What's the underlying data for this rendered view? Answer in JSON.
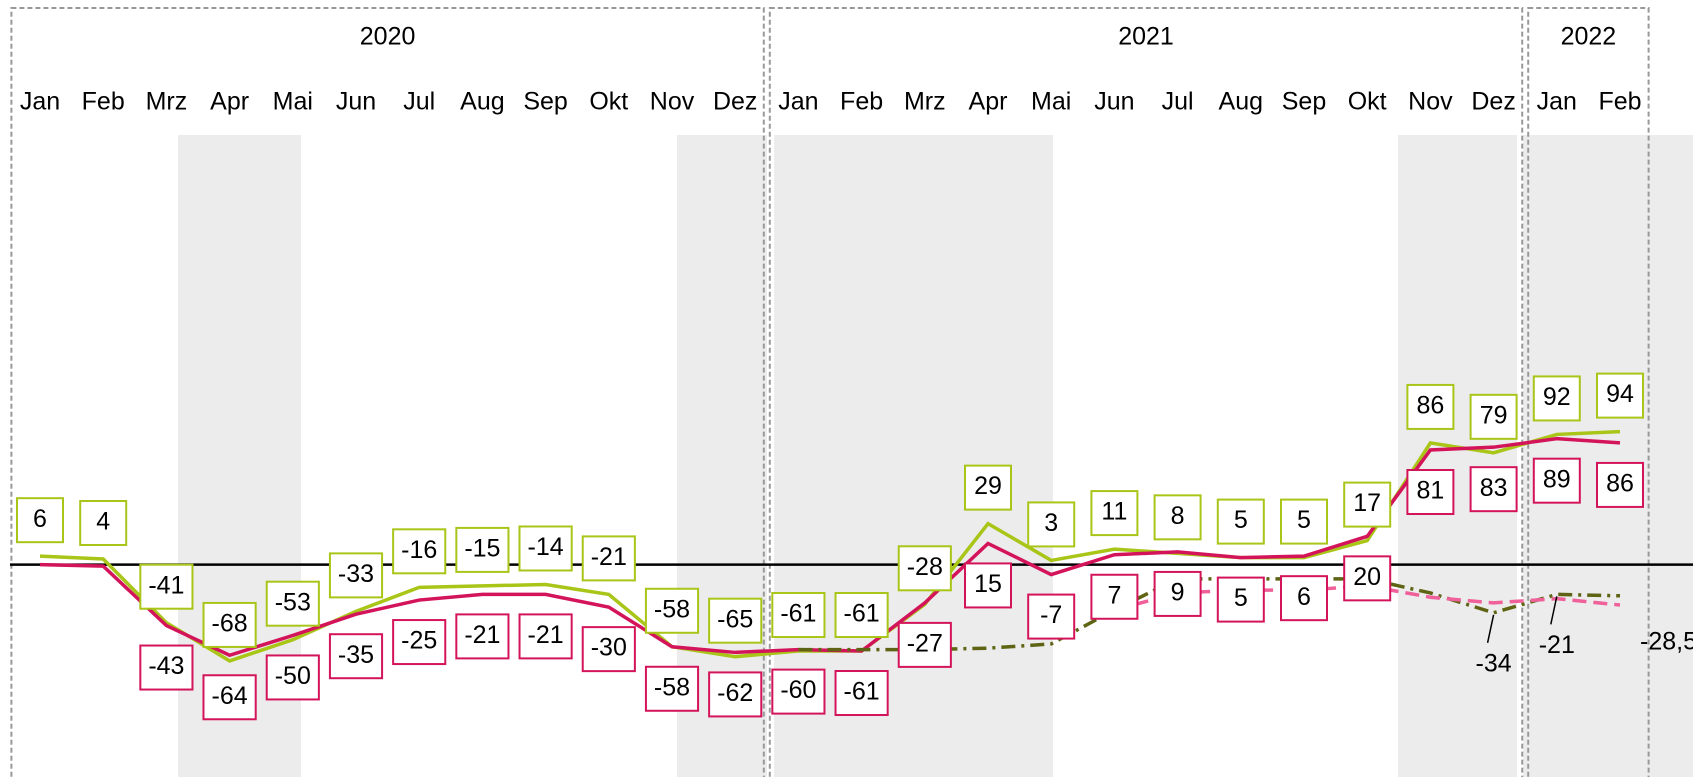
{
  "chart_data": {
    "type": "line",
    "groups": [
      {
        "name": "2020",
        "categories": [
          "Jan",
          "Feb",
          "Mrz",
          "Apr",
          "Mai",
          "Jun",
          "Jul",
          "Aug",
          "Sep",
          "Okt",
          "Nov",
          "Dez"
        ]
      },
      {
        "name": "2021",
        "categories": [
          "Jan",
          "Feb",
          "Mrz",
          "Apr",
          "Mai",
          "Jun",
          "Jul",
          "Aug",
          "Sep",
          "Okt",
          "Nov",
          "Dez"
        ]
      },
      {
        "name": "2022",
        "categories": [
          "Jan",
          "Feb"
        ]
      }
    ],
    "ylim": [
      -150,
      300
    ],
    "series": [
      {
        "color": "#a9c518",
        "style": "solid",
        "label_position": "above",
        "values": [
          6,
          4,
          -41,
          -68,
          -53,
          -33,
          -16,
          -15,
          -14,
          -21,
          -58,
          -65,
          -61,
          -61,
          -28,
          29,
          3,
          11,
          8,
          5,
          5,
          17,
          86,
          79,
          92,
          94
        ]
      },
      {
        "color": "#d4145a",
        "style": "solid",
        "label_position": "below",
        "values": [
          0,
          -1,
          -43,
          -64,
          -50,
          -35,
          -25,
          -21,
          -21,
          -30,
          -58,
          -62,
          -60,
          -61,
          -27,
          15,
          -7,
          7,
          9,
          5,
          6,
          20,
          81,
          83,
          89,
          86
        ],
        "value_labels": [
          null,
          null,
          "-43",
          "-64",
          "-50",
          "-35",
          "-25",
          "-21",
          "-21",
          "-30",
          "-58",
          "-62",
          "-60",
          "-61",
          "-27",
          "15",
          "-7",
          "7",
          "9",
          "5",
          "6",
          "20",
          "81",
          "83",
          "89",
          "86"
        ]
      },
      {
        "color": "#5e6414",
        "style": "dashdot",
        "label_position": "below",
        "values": [
          null,
          null,
          null,
          null,
          null,
          null,
          null,
          null,
          null,
          null,
          null,
          null,
          -60,
          -60,
          -60,
          -59,
          -56,
          -32,
          -10,
          -10,
          -10,
          -10,
          -20,
          -34,
          -21,
          -22
        ],
        "value_labels": [
          null,
          null,
          null,
          null,
          null,
          null,
          null,
          null,
          null,
          null,
          null,
          null,
          null,
          null,
          null,
          null,
          null,
          null,
          null,
          null,
          null,
          null,
          null,
          "-34",
          "-21",
          null
        ]
      },
      {
        "color": "#f0609a",
        "style": "dashed",
        "label_position": "right",
        "values": [
          null,
          null,
          null,
          null,
          null,
          null,
          null,
          null,
          null,
          null,
          null,
          null,
          null,
          null,
          null,
          null,
          null,
          -32,
          -20,
          -18,
          -18,
          -15,
          -23,
          -27,
          -24,
          -28.5
        ],
        "value_labels": [
          null,
          null,
          null,
          null,
          null,
          null,
          null,
          null,
          null,
          null,
          null,
          null,
          null,
          null,
          null,
          null,
          null,
          null,
          null,
          null,
          null,
          null,
          null,
          null,
          null,
          "-28,5"
        ]
      }
    ]
  }
}
